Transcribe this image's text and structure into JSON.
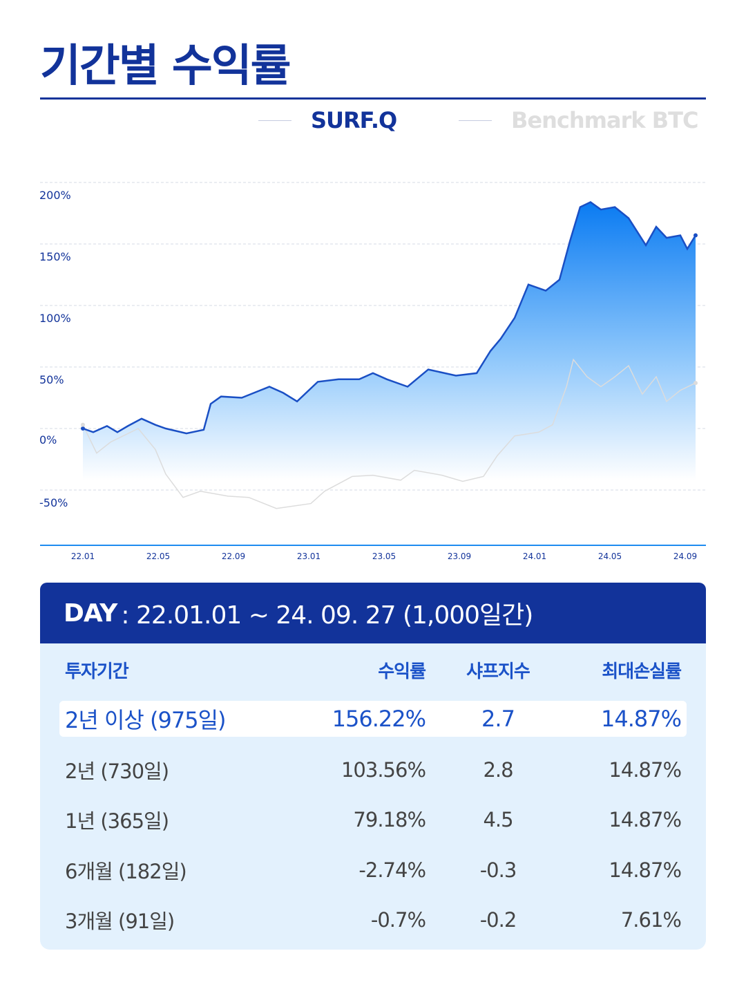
{
  "title": "기간별 수익률",
  "legend": {
    "series1": "SURF.Q",
    "series2": "Benchmark BTC"
  },
  "chart_data": {
    "type": "area",
    "x_unit": "months since 22.01",
    "ylim": [
      -50,
      200
    ],
    "yticks": [
      200,
      150,
      100,
      50,
      0,
      -50
    ],
    "ytick_labels": [
      "200%",
      "150%",
      "100%",
      "50%",
      "0%",
      "-50%"
    ],
    "xticks": [
      0,
      4,
      8,
      12,
      16,
      20,
      24,
      28,
      32
    ],
    "xtick_labels": [
      "22.01",
      "22.05",
      "22.09",
      "23.01",
      "23.05",
      "23.09",
      "24.01",
      "24.05",
      "24.09"
    ],
    "series": [
      {
        "name": "SURF.Q",
        "color": "#1a4fc4",
        "points": [
          [
            0,
            0
          ],
          [
            0.55,
            -3
          ],
          [
            1.28,
            2
          ],
          [
            1.83,
            -3
          ],
          [
            2.39,
            2
          ],
          [
            3.12,
            8
          ],
          [
            3.85,
            3
          ],
          [
            4.4,
            0
          ],
          [
            5.5,
            -4
          ],
          [
            6.42,
            -1
          ],
          [
            6.79,
            20
          ],
          [
            7.34,
            26
          ],
          [
            8.44,
            25
          ],
          [
            9.91,
            34
          ],
          [
            10.64,
            29
          ],
          [
            11.38,
            22
          ],
          [
            12.48,
            38
          ],
          [
            13.58,
            40
          ],
          [
            14.68,
            40
          ],
          [
            15.41,
            45
          ],
          [
            16.15,
            40
          ],
          [
            17.25,
            34
          ],
          [
            18.35,
            48
          ],
          [
            19.82,
            43
          ],
          [
            20.92,
            45
          ],
          [
            21.65,
            63
          ],
          [
            22.2,
            73
          ],
          [
            22.94,
            90
          ],
          [
            23.67,
            117
          ],
          [
            24.59,
            112
          ],
          [
            25.32,
            121
          ],
          [
            25.87,
            152
          ],
          [
            26.42,
            180
          ],
          [
            26.97,
            184
          ],
          [
            27.52,
            178
          ],
          [
            28.26,
            180
          ],
          [
            28.99,
            171
          ],
          [
            29.91,
            149
          ],
          [
            30.46,
            164
          ],
          [
            31.01,
            155
          ],
          [
            31.74,
            157
          ],
          [
            32.11,
            146
          ],
          [
            32.55,
            157
          ]
        ]
      },
      {
        "name": "Benchmark BTC",
        "color": "#dcdcdc",
        "points": [
          [
            0,
            3
          ],
          [
            0.73,
            -20
          ],
          [
            1.47,
            -11
          ],
          [
            2.94,
            0
          ],
          [
            3.85,
            -17
          ],
          [
            4.4,
            -37
          ],
          [
            5.32,
            -56
          ],
          [
            6.24,
            -51
          ],
          [
            7.71,
            -55
          ],
          [
            8.81,
            -56
          ],
          [
            10.28,
            -65
          ],
          [
            12.11,
            -61
          ],
          [
            12.84,
            -51
          ],
          [
            14.31,
            -39
          ],
          [
            15.41,
            -38
          ],
          [
            16.88,
            -42
          ],
          [
            17.61,
            -34
          ],
          [
            19.08,
            -38
          ],
          [
            20.18,
            -43
          ],
          [
            21.28,
            -39
          ],
          [
            22.02,
            -22
          ],
          [
            22.94,
            -6
          ],
          [
            24.22,
            -3
          ],
          [
            24.95,
            3
          ],
          [
            25.69,
            34
          ],
          [
            26.06,
            56
          ],
          [
            26.79,
            42
          ],
          [
            27.52,
            34
          ],
          [
            28.26,
            42
          ],
          [
            28.99,
            51
          ],
          [
            29.72,
            28
          ],
          [
            30.46,
            42
          ],
          [
            31.01,
            22
          ],
          [
            31.74,
            31
          ],
          [
            32.55,
            37
          ]
        ]
      }
    ]
  },
  "summary": {
    "day_label": "DAY",
    "day_range": ": 22.01.01 ~ 24. 09. 27 (1,000일간)"
  },
  "table": {
    "headers": [
      "투자기간",
      "수익률",
      "샤프지수",
      "최대손실률"
    ],
    "rows": [
      [
        "2년 이상 (975일)",
        "156.22%",
        "2.7",
        "14.87%"
      ],
      [
        "2년 (730일)",
        "103.56%",
        "2.8",
        "14.87%"
      ],
      [
        "1년 (365일)",
        "79.18%",
        "4.5",
        "14.87%"
      ],
      [
        "6개월 (182일)",
        "-2.74%",
        "-0.3",
        "14.87%"
      ],
      [
        "3개월 (91일)",
        "-0.7%",
        "-0.2",
        "7.61%"
      ]
    ]
  }
}
